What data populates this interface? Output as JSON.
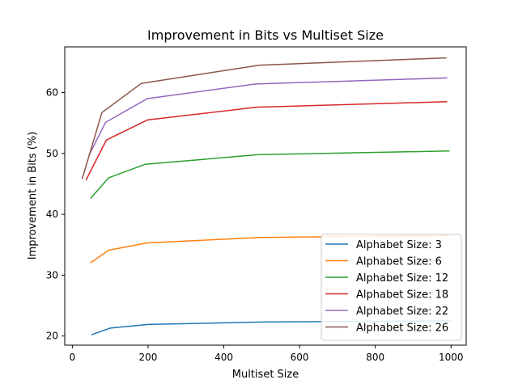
{
  "chart_data": {
    "type": "line",
    "title": "Improvement in Bits vs Multiset Size",
    "xlabel": "Multiset Size",
    "ylabel": "Improvement in Bits (%)",
    "xlim": [
      -20,
      1040
    ],
    "ylim": [
      18.5,
      67.5
    ],
    "xticks": [
      0,
      200,
      400,
      600,
      800,
      1000
    ],
    "yticks": [
      20,
      30,
      40,
      50,
      60
    ],
    "grid": false,
    "legend_position": "lower-right",
    "series": [
      {
        "name": "Alphabet Size: 3",
        "color": "#1f77b4",
        "x": [
          50,
          100,
          200,
          500,
          1000
        ],
        "y": [
          20.2,
          21.3,
          21.9,
          22.3,
          22.5
        ]
      },
      {
        "name": "Alphabet Size: 6",
        "color": "#ff7f0e",
        "x": [
          48,
          96,
          198,
          498,
          996
        ],
        "y": [
          32.0,
          34.1,
          35.3,
          36.2,
          36.5
        ]
      },
      {
        "name": "Alphabet Size: 12",
        "color": "#2ca02c",
        "x": [
          48,
          96,
          192,
          492,
          996
        ],
        "y": [
          42.6,
          46.0,
          48.2,
          49.8,
          50.4
        ]
      },
      {
        "name": "Alphabet Size: 18",
        "color": "#d62728",
        "x": [
          36,
          90,
          198,
          486,
          990
        ],
        "y": [
          45.6,
          52.2,
          55.5,
          57.6,
          58.5
        ]
      },
      {
        "name": "Alphabet Size: 22",
        "color": "#9467bd",
        "x": [
          44,
          88,
          198,
          484,
          990
        ],
        "y": [
          49.7,
          55.1,
          59.0,
          61.4,
          62.4
        ]
      },
      {
        "name": "Alphabet Size: 26",
        "color": "#8c564b",
        "x": [
          26,
          78,
          182,
          494,
          988
        ],
        "y": [
          45.8,
          56.7,
          61.5,
          64.5,
          65.7
        ]
      }
    ]
  }
}
